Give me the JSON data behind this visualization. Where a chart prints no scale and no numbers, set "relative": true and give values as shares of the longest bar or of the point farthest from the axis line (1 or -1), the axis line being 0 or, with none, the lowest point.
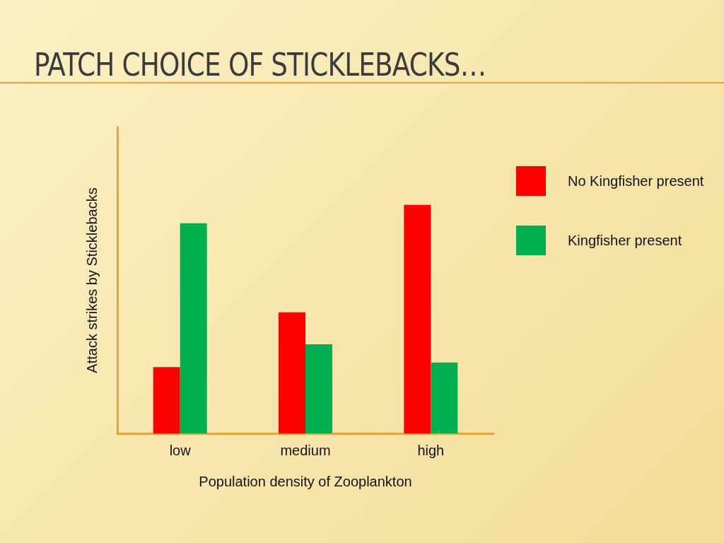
{
  "chart_data": {
    "type": "bar",
    "title": "PATCH CHOICE OF STICKLEBACKS…",
    "xlabel": "Population density of Zooplankton",
    "ylabel": "Attack strikes by Sticklebacks",
    "categories": [
      "low",
      "medium",
      "high"
    ],
    "series": [
      {
        "name": "No Kingfisher present",
        "color": "#ff0000",
        "values": [
          0.29,
          0.53,
          1
        ]
      },
      {
        "name": "Kingfisher present",
        "color": "#00b050",
        "values": [
          0.92,
          0.39,
          0.31
        ]
      }
    ],
    "relative": true,
    "grid": false,
    "legend": "top right"
  }
}
